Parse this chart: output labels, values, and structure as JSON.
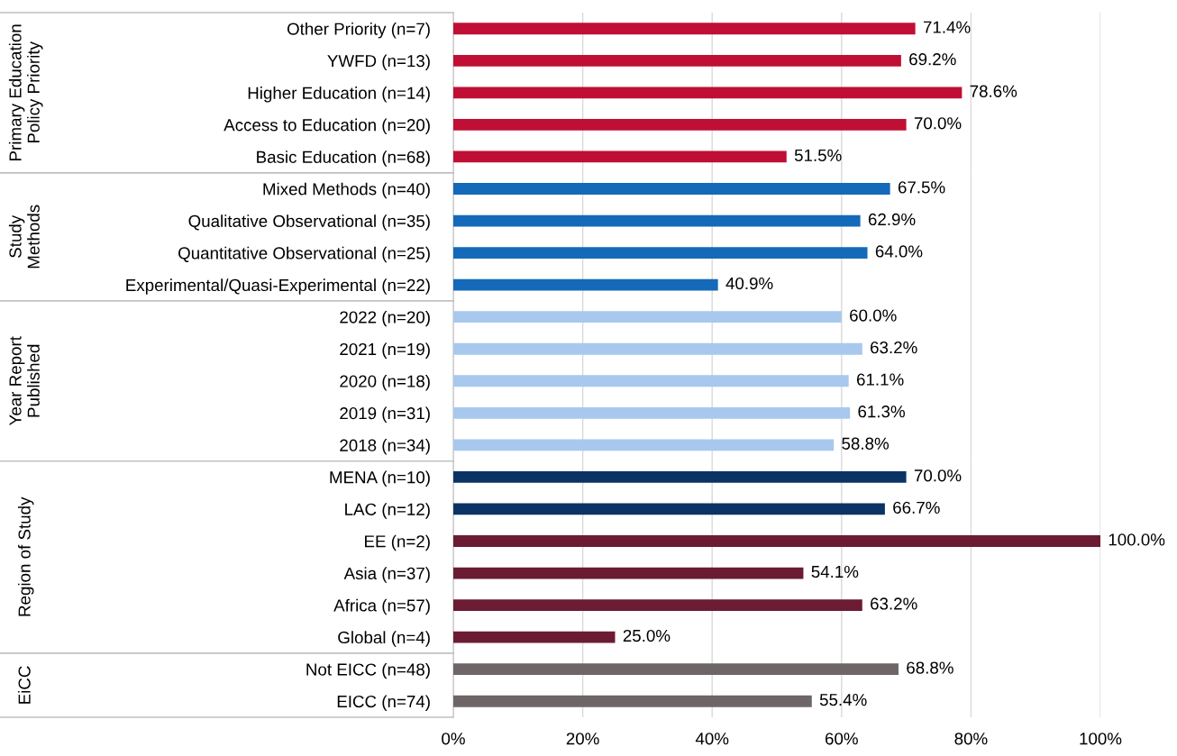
{
  "chart_data": [
    {
      "type": "bar",
      "orientation": "horizontal",
      "ylabel": "Primary Education\nPolicy Priority",
      "tick_labels": "y",
      "categories": [
        "Other Priority (n=7)",
        "YWFD (n=13)",
        "Higher Education (n=14)",
        "Access to Education (n=20)",
        "Basic Education (n=68)"
      ],
      "values": [
        71.4,
        69.2,
        78.6,
        70.0,
        51.5
      ],
      "value_labels": [
        "71.4%",
        "69.2%",
        "78.6%",
        "70.0%",
        "51.5%"
      ],
      "colors": [
        "#c00f34",
        "#c00f34",
        "#c00f34",
        "#c00f34",
        "#c00f34"
      ],
      "xlim": [
        0,
        100
      ],
      "xticks": [
        {
          "value": 0,
          "label": null
        },
        {
          "value": 20,
          "label": null
        },
        {
          "value": 40,
          "label": null
        },
        {
          "value": 60,
          "label": null
        },
        {
          "value": 80,
          "label": null
        },
        {
          "value": 100,
          "label": null
        }
      ],
      "grid": "x"
    },
    {
      "type": "bar",
      "orientation": "horizontal",
      "ylabel": "Study\nMethods",
      "tick_labels": "y",
      "categories": [
        "Mixed Methods (n=40)",
        "Qualitative Observational (n=35)",
        "Quantitative Observational (n=25)",
        "Experimental/Quasi-Experimental (n=22)"
      ],
      "values": [
        67.5,
        62.9,
        64.0,
        40.9
      ],
      "value_labels": [
        "67.5%",
        "62.9%",
        "64.0%",
        "40.9%"
      ],
      "colors": [
        "#1469b9",
        "#1469b9",
        "#1469b9",
        "#1469b9"
      ],
      "xlim": [
        0,
        100
      ],
      "xticks": [
        {
          "value": 0,
          "label": null
        },
        {
          "value": 20,
          "label": null
        },
        {
          "value": 40,
          "label": null
        },
        {
          "value": 60,
          "label": null
        },
        {
          "value": 80,
          "label": null
        },
        {
          "value": 100,
          "label": null
        }
      ],
      "grid": "x"
    },
    {
      "type": "bar",
      "orientation": "horizontal",
      "ylabel": "Year Report\nPublished",
      "tick_labels": "y",
      "categories": [
        "2022 (n=20)",
        "2021 (n=19)",
        "2020 (n=18)",
        "2019 (n=31)",
        "2018 (n=34)"
      ],
      "values": [
        60.0,
        63.2,
        61.1,
        61.3,
        58.8
      ],
      "value_labels": [
        "60.0%",
        "63.2%",
        "61.1%",
        "61.3%",
        "58.8%"
      ],
      "colors": [
        "#a8c8ee",
        "#a8c8ee",
        "#a8c8ee",
        "#a8c8ee",
        "#a8c8ee"
      ],
      "xlim": [
        0,
        100
      ],
      "xticks": [
        {
          "value": 0,
          "label": null
        },
        {
          "value": 20,
          "label": null
        },
        {
          "value": 40,
          "label": null
        },
        {
          "value": 60,
          "label": null
        },
        {
          "value": 80,
          "label": null
        },
        {
          "value": 100,
          "label": null
        }
      ],
      "grid": "x"
    },
    {
      "type": "bar",
      "orientation": "horizontal",
      "ylabel": "Region of Study",
      "tick_labels": "y",
      "categories": [
        "MENA (n=10)",
        "LAC (n=12)",
        "EE (n=2)",
        "Asia (n=37)",
        "Africa (n=57)",
        "Global (n=4)"
      ],
      "values": [
        70.0,
        66.7,
        100.0,
        54.1,
        63.2,
        25.0
      ],
      "value_labels": [
        "70.0%",
        "66.7%",
        "100.0%",
        "54.1%",
        "63.2%",
        "25.0%"
      ],
      "colors": [
        "#0c3366",
        "#0c3366",
        "#6b1c33",
        "#6b1c33",
        "#6b1c33",
        "#6b1c33"
      ],
      "xlim": [
        0,
        100
      ],
      "xticks": [
        {
          "value": 0,
          "label": null
        },
        {
          "value": 20,
          "label": null
        },
        {
          "value": 40,
          "label": null
        },
        {
          "value": 60,
          "label": null
        },
        {
          "value": 80,
          "label": null
        },
        {
          "value": 100,
          "label": null
        }
      ],
      "grid": "x"
    },
    {
      "type": "bar",
      "orientation": "horizontal",
      "ylabel": "EiCC",
      "categories": [
        "Not EICC (n=48)",
        "EICC (n=74)"
      ],
      "values": [
        68.8,
        55.4
      ],
      "value_labels": [
        "68.8%",
        "55.4%"
      ],
      "colors": [
        "#6e6566",
        "#6e6566"
      ],
      "xlim": [
        0,
        100
      ],
      "xticks": [
        {
          "value": 0,
          "label": "0%"
        },
        {
          "value": 20,
          "label": "20%"
        },
        {
          "value": 40,
          "label": "40%"
        },
        {
          "value": 60,
          "label": "60%"
        },
        {
          "value": 80,
          "label": "80%"
        },
        {
          "value": 100,
          "label": "100%"
        }
      ],
      "grid": "x"
    }
  ]
}
